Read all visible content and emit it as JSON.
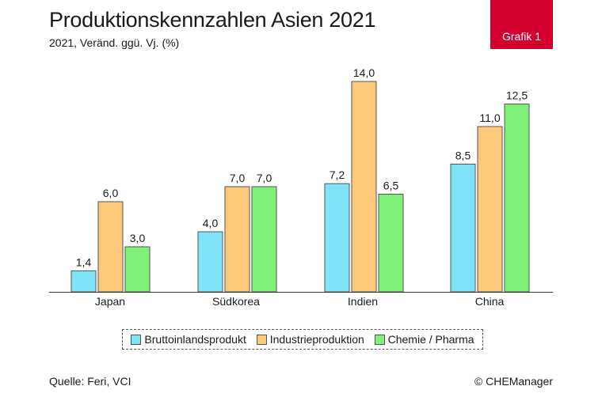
{
  "header": {
    "title": "Produktionskennzahlen Asien 2021",
    "subtitle": "2021, Veränd. ggü. Vj. (%)",
    "badge": "Grafik 1"
  },
  "footer": {
    "source": "Quelle: Feri, VCI",
    "credit": "© CHEManager"
  },
  "chart_data": {
    "type": "bar",
    "title": "Produktionskennzahlen Asien 2021",
    "subtitle": "2021, Veränd. ggü. Vj. (%)",
    "categories": [
      "Japan",
      "Südkorea",
      "Indien",
      "China"
    ],
    "series": [
      {
        "name": "Bruttoinlandsprodukt",
        "color": "#7ee3f7",
        "values": [
          1.4,
          4.0,
          7.2,
          8.5
        ],
        "labels": [
          "1,4",
          "4,0",
          "7,2",
          "8,5"
        ]
      },
      {
        "name": "Industrieproduktion",
        "color": "#fcc97a",
        "values": [
          6.0,
          7.0,
          14.0,
          11.0
        ],
        "labels": [
          "6,0",
          "7,0",
          "14,0",
          "11,0"
        ]
      },
      {
        "name": "Chemie / Pharma",
        "color": "#7ff07a",
        "values": [
          3.0,
          7.0,
          6.5,
          12.5
        ],
        "labels": [
          "3,0",
          "7,0",
          "6,5",
          "12,5"
        ]
      }
    ],
    "ylim": [
      0,
      14
    ],
    "grid": false,
    "legend": "bottom"
  }
}
